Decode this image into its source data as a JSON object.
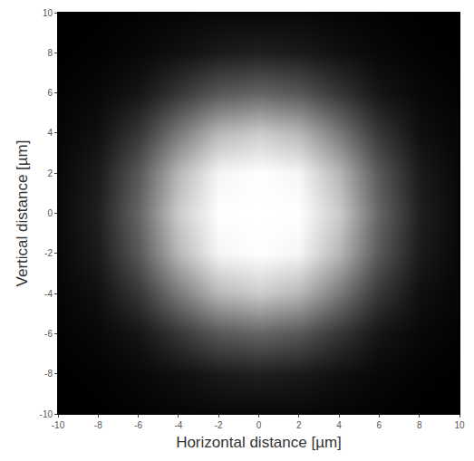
{
  "chart_data": {
    "type": "heatmap",
    "xlabel": "Horizontal distance [µm]",
    "ylabel": "Vertical distance [µm]",
    "x": [
      -10,
      -8,
      -6,
      -4,
      -2,
      0,
      2,
      4,
      6,
      8,
      10
    ],
    "y": [
      -10,
      -8,
      -6,
      -4,
      -2,
      0,
      2,
      4,
      6,
      8,
      10
    ],
    "z": [
      [
        1,
        1,
        2,
        3,
        4,
        4,
        4,
        3,
        2,
        1,
        1
      ],
      [
        1,
        2,
        4,
        7,
        11,
        13,
        11,
        7,
        4,
        2,
        1
      ],
      [
        2,
        4,
        9,
        22,
        35,
        40,
        35,
        22,
        9,
        4,
        2
      ],
      [
        3,
        7,
        22,
        48,
        72,
        80,
        72,
        48,
        22,
        7,
        3
      ],
      [
        4,
        11,
        35,
        72,
        96,
        100,
        96,
        72,
        35,
        11,
        4
      ],
      [
        4,
        13,
        40,
        80,
        100,
        100,
        100,
        80,
        40,
        13,
        4
      ],
      [
        4,
        11,
        35,
        72,
        96,
        100,
        96,
        72,
        35,
        11,
        4
      ],
      [
        3,
        7,
        22,
        48,
        72,
        80,
        72,
        48,
        22,
        7,
        3
      ],
      [
        2,
        4,
        9,
        22,
        35,
        40,
        35,
        22,
        9,
        4,
        2
      ],
      [
        1,
        2,
        4,
        7,
        11,
        13,
        11,
        7,
        4,
        2,
        1
      ],
      [
        1,
        1,
        2,
        3,
        4,
        4,
        4,
        3,
        2,
        1,
        1
      ]
    ],
    "xlim": [
      -10,
      10
    ],
    "ylim": [
      -10,
      10
    ],
    "xticks": [
      -10,
      -8,
      -6,
      -4,
      -2,
      0,
      2,
      4,
      6,
      8,
      10
    ],
    "yticks": [
      -10,
      -8,
      -6,
      -4,
      -2,
      0,
      2,
      4,
      6,
      8,
      10
    ],
    "grid": false
  }
}
